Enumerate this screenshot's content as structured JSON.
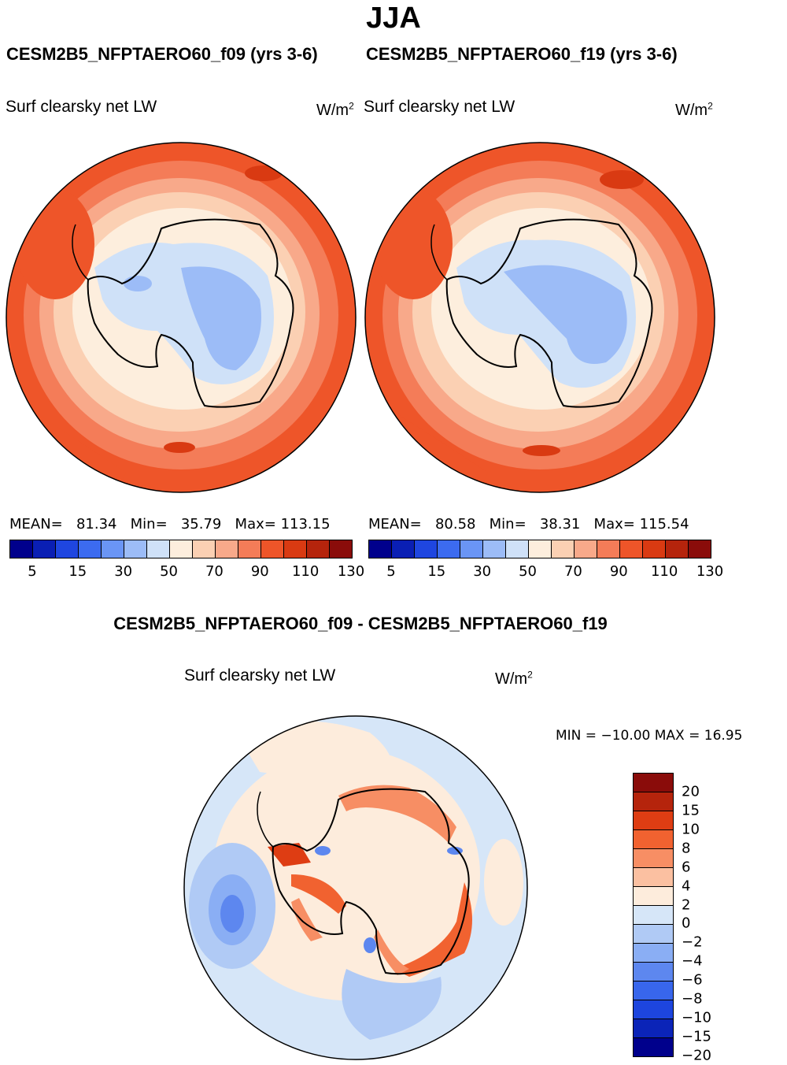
{
  "season": "JJA",
  "panels": [
    {
      "case": "CESM2B5_NFPTAERO60_f09 (yrs 3-6)",
      "variable": "Surf clearsky net LW",
      "units_base": "W/m",
      "units_exp": "2",
      "stats": {
        "mean_label": "MEAN=",
        "mean": "81.34",
        "min_label": "Min=",
        "min": "35.79",
        "max_label": "Max=",
        "max": "113.15"
      }
    },
    {
      "case": "CESM2B5_NFPTAERO60_f19 (yrs 3-6)",
      "variable": "Surf clearsky net LW",
      "units_base": "W/m",
      "units_exp": "2",
      "stats": {
        "mean_label": "MEAN=",
        "mean": "80.58",
        "min_label": "Min=",
        "min": "38.31",
        "max_label": "Max=",
        "max": "115.54"
      }
    }
  ],
  "diff": {
    "title": "CESM2B5_NFPTAERO60_f09 - CESM2B5_NFPTAERO60_f19",
    "variable": "Surf clearsky net LW",
    "units_base": "W/m",
    "units_exp": "2",
    "minmax": "MIN = −10.00  MAX =   16.95"
  },
  "colorbar_abs": {
    "colors": [
      "#00008c",
      "#0a1fb4",
      "#1f46e0",
      "#3c6bf0",
      "#6a95f5",
      "#9cbcf7",
      "#cfe1f8",
      "#fdeedd",
      "#fbd0b3",
      "#f8a98a",
      "#f47c58",
      "#ee5529",
      "#d93a12",
      "#b5240c",
      "#8a0c0a"
    ],
    "tick_labels": [
      "5",
      "15",
      "30",
      "50",
      "70",
      "90",
      "110",
      "130"
    ]
  },
  "colorbar_diff": {
    "colors": [
      "#8a0c0a",
      "#b5240c",
      "#de3d13",
      "#f16230",
      "#f78e64",
      "#fbc0a1",
      "#fdecdc",
      "#d6e6f8",
      "#b0caf5",
      "#8aaef4",
      "#5d87ef",
      "#3866ec",
      "#1d45de",
      "#0b24b8",
      "#00008c"
    ],
    "tick_labels": [
      "20",
      "15",
      "10",
      "8",
      "6",
      "4",
      "2",
      "0",
      "−2",
      "−4",
      "−6",
      "−8",
      "−10",
      "−15",
      "−20"
    ]
  }
}
